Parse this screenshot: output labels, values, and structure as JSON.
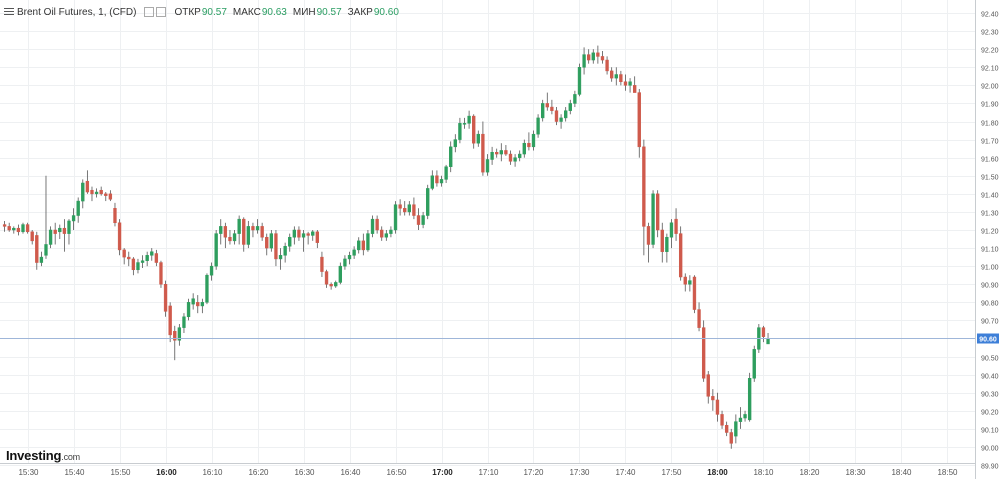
{
  "legend": {
    "symbol": "Brent Oil Futures, 1, (CFD)",
    "open_label": "ОТКР",
    "open_value": "90.57",
    "high_label": "МАКС",
    "high_value": "90.63",
    "low_label": "МИН",
    "low_value": "90.57",
    "close_label": "ЗАКР",
    "close_value": "90.60"
  },
  "logo": {
    "name": "Investing",
    "suffix": ".com"
  },
  "colors": {
    "up": "#2e9e5e",
    "down": "#cf5a4c",
    "grid": "#eef0f2",
    "price_line": "#9fb6d9",
    "price_tag": "#3d7fd8"
  },
  "chart_data": {
    "type": "candlestick",
    "ylim": [
      89.95,
      92.45
    ],
    "y_ticks": [
      "92.40",
      "92.30",
      "92.20",
      "92.10",
      "92.00",
      "91.90",
      "91.80",
      "91.70",
      "91.60",
      "91.50",
      "91.40",
      "91.30",
      "91.20",
      "91.10",
      "91.00",
      "90.90",
      "90.80",
      "90.70",
      "90.60",
      "90.50",
      "90.40",
      "90.30",
      "90.20",
      "90.10",
      "90.00",
      "89.90"
    ],
    "x_ticks": [
      {
        "label": "15:30",
        "t": 5
      },
      {
        "label": "15:40",
        "t": 15
      },
      {
        "label": "15:50",
        "t": 25
      },
      {
        "label": "16:00",
        "t": 35,
        "bold": true
      },
      {
        "label": "16:10",
        "t": 45
      },
      {
        "label": "16:20",
        "t": 55
      },
      {
        "label": "16:30",
        "t": 65
      },
      {
        "label": "16:40",
        "t": 75
      },
      {
        "label": "16:50",
        "t": 85
      },
      {
        "label": "17:00",
        "t": 95,
        "bold": true
      },
      {
        "label": "17:10",
        "t": 105
      },
      {
        "label": "17:20",
        "t": 115
      },
      {
        "label": "17:30",
        "t": 125
      },
      {
        "label": "17:40",
        "t": 135
      },
      {
        "label": "17:50",
        "t": 145
      },
      {
        "label": "18:00",
        "t": 155,
        "bold": true
      },
      {
        "label": "18:10",
        "t": 165
      },
      {
        "label": "18:20",
        "t": 175
      },
      {
        "label": "18:30",
        "t": 185
      },
      {
        "label": "18:40",
        "t": 195
      },
      {
        "label": "18:50",
        "t": 205
      }
    ],
    "t_range": [
      -1,
      211
    ],
    "last_price": "90.60",
    "candles": [
      [
        91.23,
        91.25,
        91.19,
        91.22
      ],
      [
        91.22,
        91.24,
        91.19,
        91.2
      ],
      [
        91.2,
        91.22,
        91.18,
        91.21
      ],
      [
        91.21,
        91.23,
        91.17,
        91.19
      ],
      [
        91.19,
        91.24,
        91.18,
        91.23
      ],
      [
        91.23,
        91.24,
        91.18,
        91.19
      ],
      [
        91.19,
        91.2,
        91.12,
        91.14
      ],
      [
        91.17,
        91.19,
        90.98,
        91.02
      ],
      [
        91.02,
        91.08,
        91.0,
        91.05
      ],
      [
        91.06,
        91.5,
        91.04,
        91.12
      ],
      [
        91.12,
        91.22,
        91.1,
        91.2
      ],
      [
        91.2,
        91.24,
        91.12,
        91.18
      ],
      [
        91.19,
        91.23,
        91.15,
        91.21
      ],
      [
        91.21,
        91.26,
        91.08,
        91.18
      ],
      [
        91.18,
        91.26,
        91.12,
        91.25
      ],
      [
        91.25,
        91.32,
        91.2,
        91.28
      ],
      [
        91.28,
        91.38,
        91.24,
        91.36
      ],
      [
        91.36,
        91.48,
        91.32,
        91.46
      ],
      [
        91.47,
        91.53,
        91.4,
        91.41
      ],
      [
        91.42,
        91.44,
        91.36,
        91.4
      ],
      [
        91.4,
        91.43,
        91.38,
        91.41
      ],
      [
        91.42,
        91.44,
        91.39,
        91.4
      ],
      [
        91.4,
        91.41,
        91.36,
        91.39
      ],
      [
        91.4,
        91.42,
        91.36,
        91.37
      ],
      [
        91.32,
        91.35,
        91.22,
        91.24
      ],
      [
        91.24,
        91.26,
        91.06,
        91.09
      ],
      [
        91.09,
        91.1,
        91.01,
        91.05
      ],
      [
        91.05,
        91.08,
        91.0,
        91.04
      ],
      [
        91.04,
        91.05,
        90.95,
        90.98
      ],
      [
        90.98,
        91.04,
        90.96,
        91.02
      ],
      [
        91.02,
        91.06,
        90.99,
        91.03
      ],
      [
        91.03,
        91.08,
        91.0,
        91.06
      ],
      [
        91.06,
        91.1,
        91.03,
        91.08
      ],
      [
        91.07,
        91.09,
        91.0,
        91.02
      ],
      [
        91.02,
        91.03,
        90.88,
        90.9
      ],
      [
        90.9,
        90.92,
        90.72,
        90.75
      ],
      [
        90.78,
        90.8,
        90.58,
        90.62
      ],
      [
        90.64,
        90.67,
        90.48,
        90.59
      ],
      [
        90.59,
        90.68,
        90.56,
        90.66
      ],
      [
        90.66,
        90.74,
        90.63,
        90.72
      ],
      [
        90.72,
        90.82,
        90.7,
        90.8
      ],
      [
        90.79,
        90.85,
        90.76,
        90.82
      ],
      [
        90.8,
        90.84,
        90.74,
        90.78
      ],
      [
        90.78,
        90.82,
        90.74,
        90.8
      ],
      [
        90.8,
        90.96,
        90.79,
        90.95
      ],
      [
        90.95,
        91.02,
        90.92,
        91.0
      ],
      [
        91.0,
        91.2,
        90.98,
        91.18
      ],
      [
        91.18,
        91.26,
        91.12,
        91.22
      ],
      [
        91.22,
        91.24,
        91.1,
        91.16
      ],
      [
        91.16,
        91.2,
        91.12,
        91.14
      ],
      [
        91.14,
        91.2,
        91.12,
        91.18
      ],
      [
        91.18,
        91.28,
        91.12,
        91.26
      ],
      [
        91.26,
        91.27,
        91.08,
        91.12
      ],
      [
        91.12,
        91.25,
        91.1,
        91.22
      ],
      [
        91.22,
        91.24,
        91.16,
        91.2
      ],
      [
        91.2,
        91.26,
        91.18,
        91.22
      ],
      [
        91.22,
        91.24,
        91.14,
        91.16
      ],
      [
        91.16,
        91.18,
        91.06,
        91.1
      ],
      [
        91.1,
        91.2,
        91.08,
        91.18
      ],
      [
        91.18,
        91.2,
        91.0,
        91.04
      ],
      [
        91.04,
        91.1,
        90.98,
        91.06
      ],
      [
        91.06,
        91.13,
        91.02,
        91.11
      ],
      [
        91.11,
        91.18,
        91.08,
        91.16
      ],
      [
        91.16,
        91.22,
        91.12,
        91.2
      ],
      [
        91.2,
        91.22,
        91.14,
        91.16
      ],
      [
        91.16,
        91.2,
        91.08,
        91.18
      ],
      [
        91.18,
        91.19,
        91.12,
        91.17
      ],
      [
        91.17,
        91.2,
        91.14,
        91.19
      ],
      [
        91.19,
        91.2,
        91.1,
        91.13
      ],
      [
        91.05,
        91.08,
        90.94,
        90.97
      ],
      [
        90.97,
        90.98,
        90.88,
        90.9
      ],
      [
        90.9,
        90.91,
        90.87,
        90.89
      ],
      [
        90.89,
        90.92,
        90.88,
        90.91
      ],
      [
        90.91,
        91.02,
        90.9,
        91.0
      ],
      [
        91.0,
        91.06,
        90.98,
        91.04
      ],
      [
        91.04,
        91.08,
        91.01,
        91.06
      ],
      [
        91.06,
        91.11,
        91.04,
        91.09
      ],
      [
        91.09,
        91.16,
        91.07,
        91.14
      ],
      [
        91.14,
        91.18,
        91.06,
        91.09
      ],
      [
        91.09,
        91.2,
        91.08,
        91.18
      ],
      [
        91.18,
        91.28,
        91.16,
        91.26
      ],
      [
        91.26,
        91.28,
        91.18,
        91.2
      ],
      [
        91.2,
        91.22,
        91.14,
        91.16
      ],
      [
        91.16,
        91.2,
        91.14,
        91.18
      ],
      [
        91.18,
        91.22,
        91.16,
        91.2
      ],
      [
        91.2,
        91.36,
        91.18,
        91.34
      ],
      [
        91.34,
        91.37,
        91.28,
        91.32
      ],
      [
        91.32,
        91.36,
        91.28,
        91.3
      ],
      [
        91.3,
        91.36,
        91.28,
        91.34
      ],
      [
        91.34,
        91.38,
        91.26,
        91.28
      ],
      [
        91.28,
        91.32,
        91.2,
        91.23
      ],
      [
        91.23,
        91.3,
        91.21,
        91.28
      ],
      [
        91.28,
        91.45,
        91.26,
        91.43
      ],
      [
        91.43,
        91.53,
        91.42,
        91.5
      ],
      [
        91.5,
        91.53,
        91.44,
        91.46
      ],
      [
        91.46,
        91.5,
        91.44,
        91.48
      ],
      [
        91.48,
        91.56,
        91.46,
        91.55
      ],
      [
        91.55,
        91.69,
        91.52,
        91.66
      ],
      [
        91.66,
        91.73,
        91.63,
        91.7
      ],
      [
        91.7,
        91.82,
        91.68,
        91.79
      ],
      [
        91.79,
        91.82,
        91.76,
        91.79
      ],
      [
        91.79,
        91.86,
        91.76,
        91.83
      ],
      [
        91.83,
        91.84,
        91.65,
        91.68
      ],
      [
        91.68,
        91.75,
        91.66,
        91.73
      ],
      [
        91.73,
        91.8,
        91.5,
        91.52
      ],
      [
        91.52,
        91.62,
        91.5,
        91.59
      ],
      [
        91.59,
        91.66,
        91.56,
        91.63
      ],
      [
        91.63,
        91.65,
        91.6,
        91.62
      ],
      [
        91.62,
        91.68,
        91.58,
        91.64
      ],
      [
        91.64,
        91.67,
        91.61,
        91.62
      ],
      [
        91.62,
        91.64,
        91.56,
        91.58
      ],
      [
        91.58,
        91.62,
        91.55,
        91.6
      ],
      [
        91.6,
        91.64,
        91.58,
        91.62
      ],
      [
        91.62,
        91.7,
        91.6,
        91.68
      ],
      [
        91.68,
        91.74,
        91.64,
        91.66
      ],
      [
        91.66,
        91.75,
        91.64,
        91.73
      ],
      [
        91.73,
        91.84,
        91.71,
        91.82
      ],
      [
        91.82,
        91.92,
        91.8,
        91.9
      ],
      [
        91.9,
        91.96,
        91.86,
        91.88
      ],
      [
        91.88,
        91.92,
        91.84,
        91.86
      ],
      [
        91.86,
        91.88,
        91.78,
        91.8
      ],
      [
        91.8,
        91.84,
        91.76,
        91.82
      ],
      [
        91.82,
        91.88,
        91.8,
        91.86
      ],
      [
        91.86,
        91.92,
        91.84,
        91.9
      ],
      [
        91.9,
        91.97,
        91.88,
        91.95
      ],
      [
        91.95,
        92.12,
        91.94,
        92.1
      ],
      [
        92.1,
        92.21,
        92.06,
        92.17
      ],
      [
        92.17,
        92.2,
        92.12,
        92.14
      ],
      [
        92.14,
        92.2,
        92.12,
        92.18
      ],
      [
        92.18,
        92.22,
        92.12,
        92.16
      ],
      [
        92.16,
        92.19,
        92.12,
        92.14
      ],
      [
        92.14,
        92.16,
        92.06,
        92.08
      ],
      [
        92.08,
        92.1,
        92.02,
        92.04
      ],
      [
        92.04,
        92.1,
        92.0,
        92.06
      ],
      [
        92.06,
        92.08,
        92.0,
        92.02
      ],
      [
        92.02,
        92.06,
        91.97,
        92.0
      ],
      [
        92.0,
        92.04,
        91.96,
        92.02
      ],
      [
        92.0,
        92.05,
        91.98,
        91.96
      ],
      [
        91.96,
        91.98,
        91.6,
        91.66
      ],
      [
        91.66,
        91.7,
        91.06,
        91.22
      ],
      [
        91.22,
        91.24,
        91.02,
        91.12
      ],
      [
        91.12,
        91.42,
        91.1,
        91.4
      ],
      [
        91.4,
        91.42,
        91.16,
        91.2
      ],
      [
        91.2,
        91.24,
        91.02,
        91.08
      ],
      [
        91.08,
        91.18,
        91.02,
        91.16
      ],
      [
        91.16,
        91.26,
        91.1,
        91.24
      ],
      [
        91.26,
        91.32,
        91.14,
        91.18
      ],
      [
        91.18,
        91.22,
        90.92,
        90.94
      ],
      [
        90.94,
        90.96,
        90.86,
        90.9
      ],
      [
        90.9,
        90.95,
        90.86,
        90.92
      ],
      [
        90.94,
        90.95,
        90.74,
        90.76
      ],
      [
        90.76,
        90.8,
        90.64,
        90.66
      ],
      [
        90.66,
        90.7,
        90.36,
        90.38
      ],
      [
        90.4,
        90.42,
        90.24,
        90.28
      ],
      [
        90.28,
        90.32,
        90.2,
        90.26
      ],
      [
        90.26,
        90.3,
        90.14,
        90.18
      ],
      [
        90.18,
        90.2,
        90.1,
        90.12
      ],
      [
        90.12,
        90.14,
        90.06,
        90.08
      ],
      [
        90.08,
        90.1,
        89.99,
        90.02
      ],
      [
        90.06,
        90.18,
        90.02,
        90.14
      ],
      [
        90.14,
        90.22,
        90.1,
        90.16
      ],
      [
        90.16,
        90.2,
        90.14,
        90.18
      ],
      [
        90.15,
        90.41,
        90.14,
        90.38
      ],
      [
        90.38,
        90.56,
        90.36,
        90.54
      ],
      [
        90.54,
        90.68,
        90.52,
        90.66
      ],
      [
        90.66,
        90.67,
        90.58,
        90.61
      ],
      [
        90.57,
        90.63,
        90.57,
        90.6
      ]
    ]
  }
}
